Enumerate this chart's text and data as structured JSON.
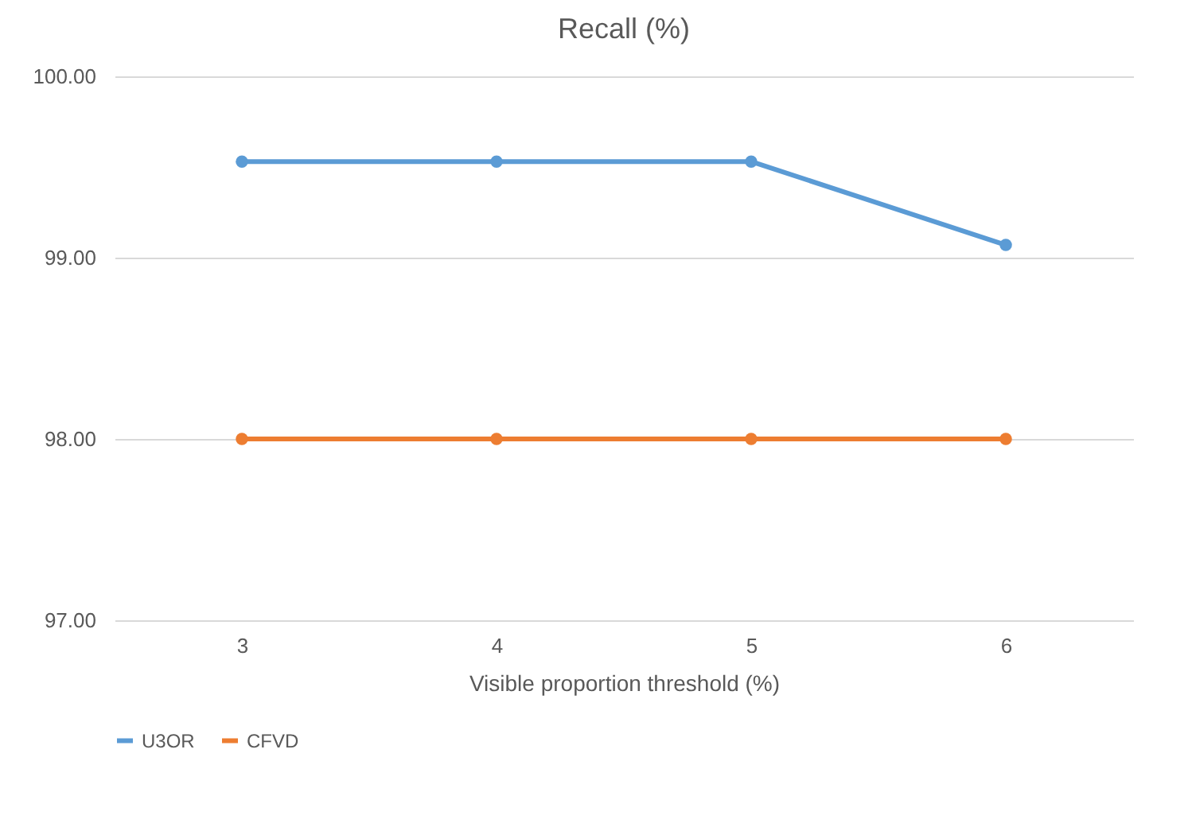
{
  "chart_data": {
    "type": "line",
    "title": "Recall (%)",
    "xlabel": "Visible proportion threshold (%)",
    "categories": [
      "3",
      "4",
      "5",
      "6"
    ],
    "series": [
      {
        "name": "U3OR",
        "color": "#5b9bd5",
        "values": [
          99.53,
          99.53,
          99.53,
          99.07
        ]
      },
      {
        "name": "CFVD",
        "color": "#ed7d31",
        "values": [
          98.0,
          98.0,
          98.0,
          98.0
        ]
      }
    ],
    "ylim": [
      97,
      100
    ],
    "yticks": [
      {
        "value": 97,
        "label": "97.00"
      },
      {
        "value": 98,
        "label": "98.00"
      },
      {
        "value": 99,
        "label": "99.00"
      },
      {
        "value": 100,
        "label": "100.00"
      }
    ],
    "grid": "y",
    "legend": "bottom",
    "marker": "circle",
    "line_style": "solid"
  }
}
